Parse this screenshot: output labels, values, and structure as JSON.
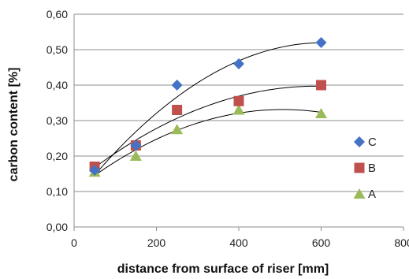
{
  "chart_data": {
    "type": "scatter",
    "title": "",
    "xlabel": "distance from surface of riser [mm]",
    "ylabel": "carbon content [%]",
    "xlim": [
      0,
      800
    ],
    "ylim": [
      0.0,
      0.6
    ],
    "x_ticks": [
      {
        "value": 0,
        "label": "0"
      },
      {
        "value": 200,
        "label": "200"
      },
      {
        "value": 400,
        "label": "400"
      },
      {
        "value": 600,
        "label": "600"
      },
      {
        "value": 800,
        "label": "800"
      }
    ],
    "y_ticks": [
      {
        "value": 0.0,
        "label": "0,00"
      },
      {
        "value": 0.1,
        "label": "0,10"
      },
      {
        "value": 0.2,
        "label": "0,20"
      },
      {
        "value": 0.3,
        "label": "0,30"
      },
      {
        "value": 0.4,
        "label": "0,40"
      },
      {
        "value": 0.5,
        "label": "0,50"
      },
      {
        "value": 0.6,
        "label": "0,60"
      }
    ],
    "grid": "horizontal",
    "legend_position": "right",
    "trendline": "polynomial",
    "series": [
      {
        "name": "C",
        "marker": "diamond",
        "color": "#4472C4",
        "points": [
          {
            "x": 50,
            "y": 0.16
          },
          {
            "x": 150,
            "y": 0.23
          },
          {
            "x": 250,
            "y": 0.4
          },
          {
            "x": 400,
            "y": 0.46
          },
          {
            "x": 600,
            "y": 0.52
          }
        ]
      },
      {
        "name": "B",
        "marker": "square",
        "color": "#C0504D",
        "points": [
          {
            "x": 50,
            "y": 0.17
          },
          {
            "x": 150,
            "y": 0.23
          },
          {
            "x": 250,
            "y": 0.33
          },
          {
            "x": 400,
            "y": 0.355
          },
          {
            "x": 600,
            "y": 0.4
          }
        ]
      },
      {
        "name": "A",
        "marker": "triangle",
        "color": "#9BBB59",
        "points": [
          {
            "x": 50,
            "y": 0.155
          },
          {
            "x": 150,
            "y": 0.2
          },
          {
            "x": 250,
            "y": 0.275
          },
          {
            "x": 400,
            "y": 0.33
          },
          {
            "x": 600,
            "y": 0.32
          }
        ]
      }
    ]
  }
}
